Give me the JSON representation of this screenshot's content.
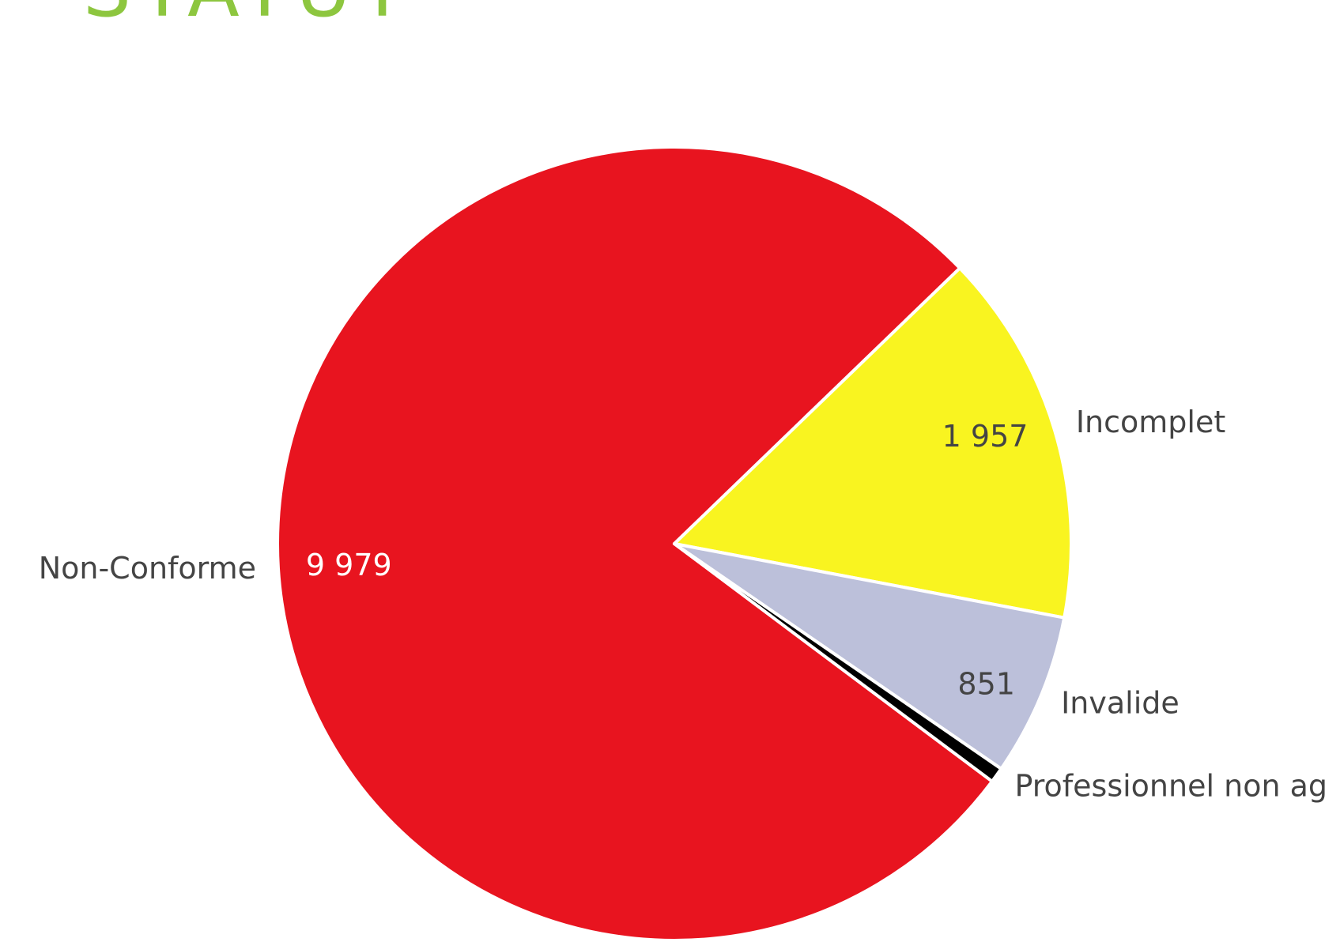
{
  "chart_data": {
    "type": "pie",
    "title": "STATUT",
    "categories": [
      "Non-Conforme",
      "Incomplet",
      "Invalide",
      "Professionnel non ag"
    ],
    "values": [
      9979,
      1957,
      851,
      80
    ],
    "value_labels": [
      "9 979",
      "1 957",
      "851",
      null
    ],
    "colors": [
      "#e8141f",
      "#f9f420",
      "#bcc0da",
      "#000000"
    ]
  }
}
